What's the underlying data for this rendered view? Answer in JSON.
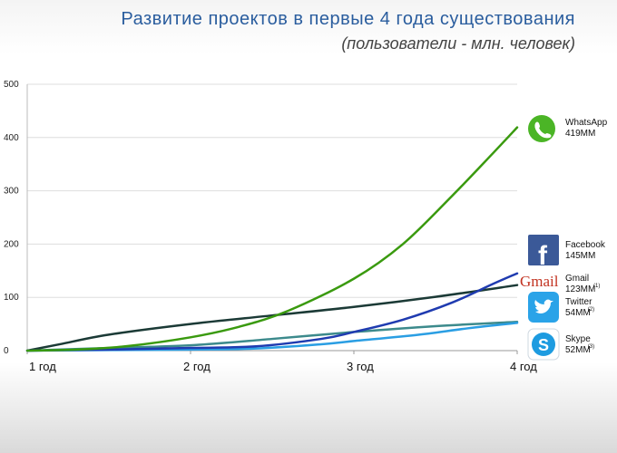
{
  "title": "Развитие проектов в первые 4 года существования",
  "subtitle": "(пользователи - млн. человек)",
  "colors": {
    "whatsapp": "#3a9a0f",
    "facebook": "#1f3bb0",
    "gmail": "#1b3a36",
    "twitter": "#3c8a8c",
    "skype": "#2a9ee3",
    "title": "#2a5d9e",
    "grid": "#dddddd"
  },
  "chart_data": {
    "type": "line",
    "x": [
      "1 год",
      "2 год",
      "3 год",
      "4 год"
    ],
    "ylim": [
      0,
      500
    ],
    "yticks": [
      "0",
      "100",
      "200",
      "300",
      "400",
      "500"
    ],
    "grid": "horizontal",
    "series": [
      {
        "name": "WhatsApp",
        "label_value": "419MM",
        "icon": "whatsapp-icon",
        "points": [
          [
            1,
            0
          ],
          [
            1.3,
            2
          ],
          [
            1.6,
            8
          ],
          [
            2,
            25
          ],
          [
            2.3,
            45
          ],
          [
            2.6,
            75
          ],
          [
            3,
            135
          ],
          [
            3.3,
            200
          ],
          [
            3.6,
            290
          ],
          [
            3.85,
            370
          ],
          [
            4,
            419
          ]
        ]
      },
      {
        "name": "Facebook",
        "label_value": "145MM",
        "icon": "facebook-icon",
        "points": [
          [
            1,
            0
          ],
          [
            1.5,
            2
          ],
          [
            2,
            5
          ],
          [
            2.4,
            8
          ],
          [
            2.8,
            22
          ],
          [
            3,
            35
          ],
          [
            3.3,
            58
          ],
          [
            3.6,
            90
          ],
          [
            3.85,
            125
          ],
          [
            4,
            145
          ]
        ]
      },
      {
        "name": "Gmail",
        "label_value": "123MM",
        "note": "(1)",
        "icon": "gmail-icon",
        "points": [
          [
            1,
            0
          ],
          [
            1.2,
            12
          ],
          [
            1.5,
            30
          ],
          [
            2,
            50
          ],
          [
            2.5,
            66
          ],
          [
            3,
            82
          ],
          [
            3.5,
            101
          ],
          [
            4,
            123
          ]
        ]
      },
      {
        "name": "Twitter",
        "label_value": "54MM",
        "note": "(2)",
        "icon": "twitter-icon",
        "points": [
          [
            1,
            0
          ],
          [
            1.4,
            4
          ],
          [
            2,
            10
          ],
          [
            2.5,
            22
          ],
          [
            3,
            35
          ],
          [
            3.5,
            46
          ],
          [
            4,
            54
          ]
        ]
      },
      {
        "name": "Skype",
        "label_value": "52MM",
        "note": "(3)",
        "icon": "skype-icon",
        "points": [
          [
            1,
            0
          ],
          [
            1.5,
            1
          ],
          [
            2,
            2
          ],
          [
            2.4,
            4
          ],
          [
            2.8,
            12
          ],
          [
            3,
            18
          ],
          [
            3.4,
            30
          ],
          [
            3.7,
            42
          ],
          [
            4,
            52
          ]
        ]
      }
    ]
  }
}
